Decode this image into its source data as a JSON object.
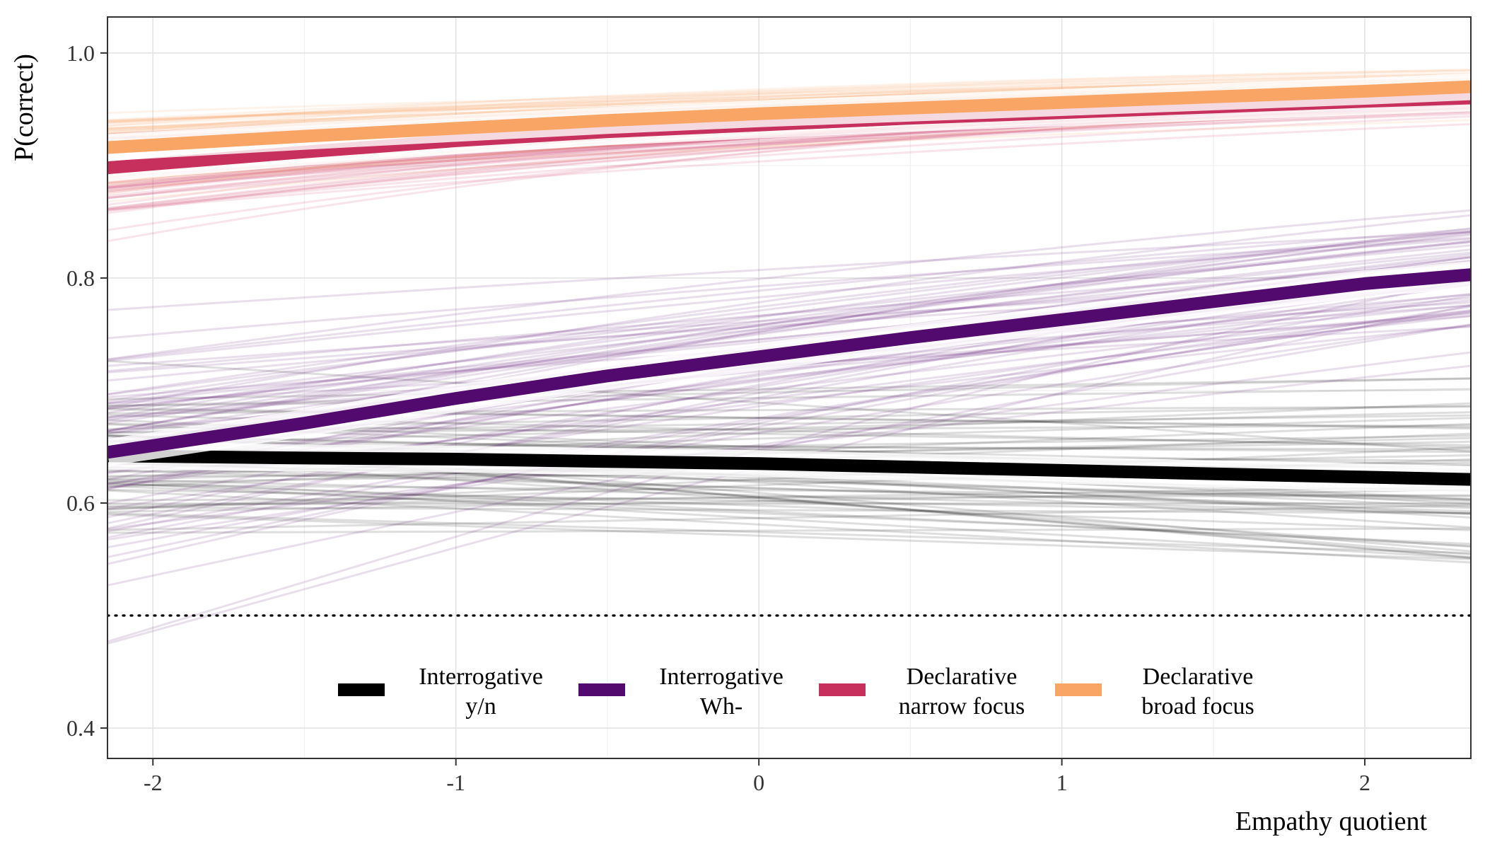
{
  "chart_data": {
    "type": "line",
    "title": "",
    "xlabel": "Empathy quotient",
    "ylabel": "P(correct)",
    "xlim": [
      -2.15,
      2.35
    ],
    "ylim": [
      0.373,
      1.032
    ],
    "x_ticks": [
      -2,
      -1,
      0,
      1,
      2
    ],
    "x_tick_labels": [
      "-2",
      "-1",
      "0",
      "1",
      "2"
    ],
    "y_ticks": [
      0.4,
      0.6,
      0.8,
      1.0
    ],
    "y_tick_labels": [
      "0.4",
      "0.6",
      "0.8",
      "1.0"
    ],
    "grid": true,
    "chance_level": 0.5,
    "legend_position": "bottom-center",
    "x": [
      -2.15,
      -1.5,
      -1,
      -0.5,
      0,
      0.5,
      1,
      1.5,
      2,
      2.35
    ],
    "series": [
      {
        "name": "Interrogative y/n",
        "legend_lines": [
          "Interrogative",
          "y/n"
        ],
        "color": "#000000",
        "values": [
          0.642,
          0.64,
          0.639,
          0.637,
          0.635,
          0.632,
          0.629,
          0.626,
          0.623,
          0.621
        ],
        "posterior_spread": {
          "start": [
            0.54,
            0.72
          ],
          "end": [
            0.48,
            0.73
          ]
        }
      },
      {
        "name": "Interrogative Wh-",
        "legend_lines": [
          "Interrogative",
          "Wh-"
        ],
        "color": "#520a6e",
        "values": [
          0.645,
          0.671,
          0.693,
          0.713,
          0.73,
          0.747,
          0.763,
          0.779,
          0.795,
          0.803
        ],
        "posterior_spread": {
          "start": [
            0.44,
            0.76
          ],
          "end": [
            0.7,
            0.88
          ]
        }
      },
      {
        "name": "Declarative narrow focus",
        "legend_lines": [
          "Declarative",
          "narrow focus"
        ],
        "color": "#c7305c",
        "values": [
          0.898,
          0.912,
          0.922,
          0.93,
          0.936,
          0.942,
          0.947,
          0.952,
          0.957,
          0.96
        ],
        "posterior_spread": {
          "start": [
            0.8,
            0.93
          ],
          "end": [
            0.925,
            0.97
          ]
        }
      },
      {
        "name": "Declarative broad focus",
        "legend_lines": [
          "Declarative",
          "broad focus"
        ],
        "color": "#f9a566",
        "values": [
          0.916,
          0.926,
          0.933,
          0.94,
          0.946,
          0.951,
          0.956,
          0.961,
          0.966,
          0.97
        ],
        "posterior_spread": {
          "start": [
            0.88,
            0.955
          ],
          "end": [
            0.94,
            0.985
          ]
        }
      }
    ]
  }
}
